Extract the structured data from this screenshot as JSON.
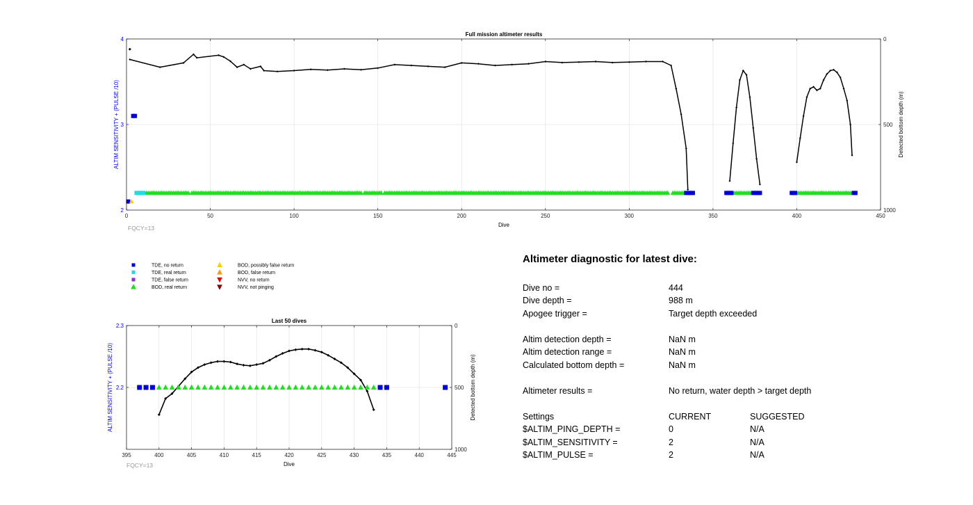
{
  "main_chart": {
    "title": "Full mission altimeter results",
    "xlabel": "Dive",
    "ylabel": "ALTIM SENSITIVITY + (PULSE /10)",
    "y2label": "Detected bottom depth (m)",
    "note": "FQCY=13",
    "xticks": [
      "0",
      "50",
      "100",
      "150",
      "200",
      "250",
      "300",
      "350",
      "400",
      "450"
    ],
    "yticks": [
      "2",
      "3",
      "4"
    ],
    "y2ticks": [
      "0",
      "500",
      "1000"
    ]
  },
  "small_chart": {
    "title": "Last 50 dives",
    "xlabel": "Dive",
    "ylabel": "ALTIM SENSITIVITY + (PULSE /10)",
    "y2label": "Detected bottom depth (m)",
    "note": "FQCY=13",
    "xticks": [
      "395",
      "400",
      "405",
      "410",
      "415",
      "420",
      "425",
      "430",
      "435",
      "440",
      "445"
    ],
    "yticks": [
      "2.2",
      "2.3"
    ],
    "y2ticks": [
      "0",
      "500",
      "1000"
    ]
  },
  "legend": [
    {
      "label": "TDE, no return",
      "marker": "square",
      "color": "#0000dd"
    },
    {
      "label": "TDE, real return",
      "marker": "square",
      "color": "#22dddd"
    },
    {
      "label": "TDE, false return",
      "marker": "square",
      "color": "#8833cc"
    },
    {
      "label": "BOD, real return",
      "marker": "triangle-up",
      "color": "#22dd22"
    },
    {
      "label": "BOD, possibly false return",
      "marker": "triangle-up",
      "color": "#ffcc00"
    },
    {
      "label": "BOD, false return",
      "marker": "triangle-up",
      "color": "#ff9900"
    },
    {
      "label": "NVV, no return",
      "marker": "triangle-down",
      "color": "#ee0000"
    },
    {
      "label": "NVV, not pinging",
      "marker": "triangle-down",
      "color": "#880000"
    }
  ],
  "diagnostic": {
    "title": "Altimeter diagnostic for latest dive:",
    "dive_no_label": "Dive no =",
    "dive_no": "444",
    "dive_depth_label": "Dive depth =",
    "dive_depth": "988 m",
    "apogee_label": "Apogee trigger =",
    "apogee": "Target depth exceeded",
    "altim_det_depth_label": "Altim detection depth =",
    "altim_det_depth": "NaN m",
    "altim_det_range_label": "Altim detection range =",
    "altim_det_range": "NaN m",
    "calc_bottom_label": "Calculated bottom depth =",
    "calc_bottom": "NaN m",
    "results_label": "Altimeter results =",
    "results": "No return, water depth > target depth",
    "settings_label": "Settings",
    "current_label": "CURRENT",
    "suggested_label": "SUGGESTED",
    "ping_depth_label": "$ALTIM_PING_DEPTH =",
    "ping_depth_current": "0",
    "ping_depth_suggested": "N/A",
    "sensitivity_label": "$ALTIM_SENSITIVITY =",
    "sensitivity_current": "2",
    "sensitivity_suggested": "N/A",
    "pulse_label": "$ALTIM_PULSE =",
    "pulse_current": "2",
    "pulse_suggested": "N/A"
  },
  "chart_data": [
    {
      "type": "scatter",
      "name": "full-mission",
      "xlim": [
        0,
        450
      ],
      "ylim": [
        2,
        4
      ],
      "y2lim": [
        0,
        1000
      ],
      "y2_reversed": true,
      "grid": true,
      "bottom_depth_segments": [
        [
          [
            2,
            120
          ],
          [
            20,
            165
          ],
          [
            34,
            140
          ],
          [
            40,
            90
          ],
          [
            42,
            110
          ],
          [
            55,
            95
          ],
          [
            58,
            105
          ],
          [
            62,
            130
          ],
          [
            66,
            165
          ],
          [
            70,
            150
          ],
          [
            74,
            175
          ],
          [
            80,
            160
          ],
          [
            82,
            185
          ],
          [
            90,
            190
          ],
          [
            100,
            185
          ],
          [
            110,
            178
          ],
          [
            120,
            182
          ],
          [
            130,
            175
          ],
          [
            140,
            180
          ],
          [
            150,
            170
          ],
          [
            160,
            150
          ],
          [
            170,
            155
          ],
          [
            180,
            160
          ],
          [
            190,
            165
          ],
          [
            200,
            140
          ],
          [
            210,
            145
          ],
          [
            220,
            155
          ],
          [
            230,
            150
          ],
          [
            240,
            145
          ],
          [
            250,
            132
          ],
          [
            260,
            138
          ],
          [
            270,
            135
          ],
          [
            280,
            132
          ],
          [
            290,
            138
          ],
          [
            300,
            135
          ],
          [
            310,
            132
          ],
          [
            320,
            132
          ],
          [
            325,
            155
          ],
          [
            328,
            290
          ],
          [
            331,
            440
          ],
          [
            334,
            640
          ],
          [
            335,
            880
          ]
        ],
        [
          [
            360,
            830
          ],
          [
            362,
            610
          ],
          [
            364,
            400
          ],
          [
            366,
            240
          ],
          [
            368,
            185
          ],
          [
            370,
            210
          ],
          [
            372,
            340
          ],
          [
            374,
            520
          ],
          [
            376,
            700
          ],
          [
            378,
            850
          ]
        ],
        [
          [
            400,
            720
          ],
          [
            402,
            580
          ],
          [
            404,
            450
          ],
          [
            406,
            340
          ],
          [
            408,
            290
          ],
          [
            410,
            280
          ],
          [
            412,
            300
          ],
          [
            414,
            290
          ],
          [
            416,
            240
          ],
          [
            418,
            205
          ],
          [
            420,
            185
          ],
          [
            422,
            180
          ],
          [
            424,
            195
          ],
          [
            426,
            225
          ],
          [
            428,
            290
          ],
          [
            430,
            360
          ],
          [
            432,
            500
          ],
          [
            433,
            680
          ]
        ]
      ],
      "bottom_depth_outlier": [
        2,
        60
      ],
      "tde_no_return": [
        [
          1,
          2.1
        ],
        [
          4,
          3.1
        ],
        [
          5,
          3.1
        ],
        [
          334,
          2.2
        ],
        [
          335,
          2.2
        ],
        [
          336,
          2.2
        ],
        [
          337,
          2.2
        ],
        [
          338,
          2.2
        ],
        [
          358,
          2.2
        ],
        [
          359,
          2.2
        ],
        [
          360,
          2.2
        ],
        [
          361,
          2.2
        ],
        [
          374,
          2.2
        ],
        [
          375,
          2.2
        ],
        [
          376,
          2.2
        ],
        [
          377,
          2.2
        ],
        [
          378,
          2.2
        ],
        [
          397,
          2.2
        ],
        [
          398,
          2.2
        ],
        [
          399,
          2.2
        ],
        [
          434,
          2.2
        ],
        [
          435,
          2.2
        ]
      ],
      "tde_real_return": [
        [
          6,
          2.2
        ],
        [
          7,
          2.2
        ],
        [
          8,
          2.2
        ],
        [
          9,
          2.2
        ],
        [
          10,
          2.2
        ]
      ],
      "bod_possibly_false": [
        [
          3,
          2.1
        ]
      ],
      "bod_real_return_ranges": [
        [
          11,
          37
        ],
        [
          39,
          140
        ],
        [
          142,
          152
        ],
        [
          154,
          323
        ],
        [
          326,
          333
        ],
        [
          362,
          373
        ],
        [
          400,
          433
        ]
      ]
    },
    {
      "type": "scatter",
      "name": "last-50-dives",
      "xlim": [
        395,
        445
      ],
      "ylim": [
        2.1,
        2.3
      ],
      "y2lim": [
        0,
        1000
      ],
      "y2_reversed": true,
      "grid": true,
      "bottom_depth": [
        [
          400,
          720
        ],
        [
          401,
          590
        ],
        [
          402,
          550
        ],
        [
          403,
          490
        ],
        [
          404,
          430
        ],
        [
          405,
          375
        ],
        [
          406,
          340
        ],
        [
          407,
          315
        ],
        [
          408,
          300
        ],
        [
          409,
          290
        ],
        [
          410,
          290
        ],
        [
          411,
          295
        ],
        [
          412,
          310
        ],
        [
          413,
          320
        ],
        [
          414,
          325
        ],
        [
          415,
          315
        ],
        [
          416,
          305
        ],
        [
          417,
          280
        ],
        [
          418,
          250
        ],
        [
          419,
          225
        ],
        [
          420,
          205
        ],
        [
          421,
          195
        ],
        [
          422,
          190
        ],
        [
          423,
          190
        ],
        [
          424,
          200
        ],
        [
          425,
          215
        ],
        [
          426,
          240
        ],
        [
          427,
          270
        ],
        [
          428,
          300
        ],
        [
          429,
          340
        ],
        [
          430,
          390
        ],
        [
          431,
          440
        ],
        [
          432,
          530
        ],
        [
          433,
          680
        ]
      ],
      "tde_no_return": [
        [
          397,
          2.2
        ],
        [
          398,
          2.2
        ],
        [
          399,
          2.2
        ],
        [
          434,
          2.2
        ],
        [
          435,
          2.2
        ],
        [
          444,
          2.2
        ]
      ],
      "bod_real_return": [
        [
          400,
          2.2
        ],
        [
          401,
          2.2
        ],
        [
          402,
          2.2
        ],
        [
          403,
          2.2
        ],
        [
          404,
          2.2
        ],
        [
          405,
          2.2
        ],
        [
          406,
          2.2
        ],
        [
          407,
          2.2
        ],
        [
          408,
          2.2
        ],
        [
          409,
          2.2
        ],
        [
          410,
          2.2
        ],
        [
          411,
          2.2
        ],
        [
          412,
          2.2
        ],
        [
          413,
          2.2
        ],
        [
          414,
          2.2
        ],
        [
          415,
          2.2
        ],
        [
          416,
          2.2
        ],
        [
          417,
          2.2
        ],
        [
          418,
          2.2
        ],
        [
          419,
          2.2
        ],
        [
          420,
          2.2
        ],
        [
          421,
          2.2
        ],
        [
          422,
          2.2
        ],
        [
          423,
          2.2
        ],
        [
          424,
          2.2
        ],
        [
          425,
          2.2
        ],
        [
          426,
          2.2
        ],
        [
          427,
          2.2
        ],
        [
          428,
          2.2
        ],
        [
          429,
          2.2
        ],
        [
          430,
          2.2
        ],
        [
          431,
          2.2
        ],
        [
          432,
          2.2
        ],
        [
          433,
          2.2
        ]
      ]
    }
  ]
}
